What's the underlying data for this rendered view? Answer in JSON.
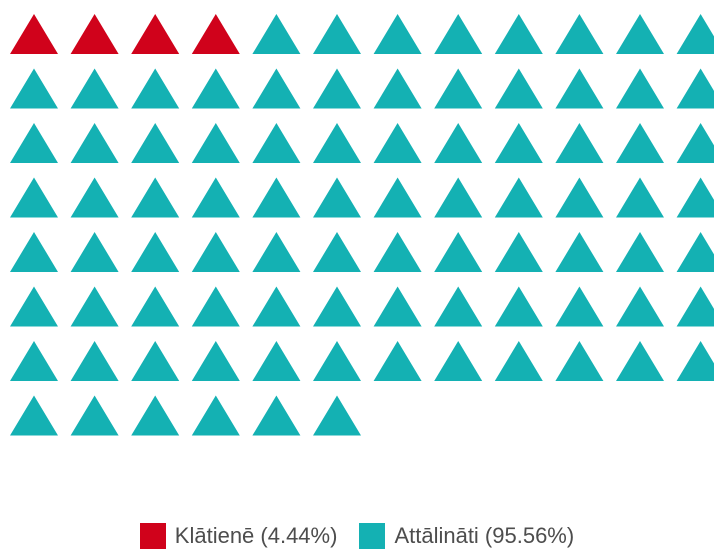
{
  "chart_data": {
    "type": "waffle",
    "unit_shape": "triangle",
    "total_units": 90,
    "series": [
      {
        "name": "Klātienē",
        "percent": 4.44,
        "units": 4,
        "color": "#d0021b"
      },
      {
        "name": "Attālināti",
        "percent": 95.56,
        "units": 86,
        "color": "#14b1b3"
      }
    ],
    "legend": {
      "position": "bottom-center",
      "items": [
        {
          "label": "Klātienē (4.44%)",
          "color": "#d0021b"
        },
        {
          "label": "Attālināti (95.56%)",
          "color": "#14b1b3"
        }
      ]
    }
  }
}
